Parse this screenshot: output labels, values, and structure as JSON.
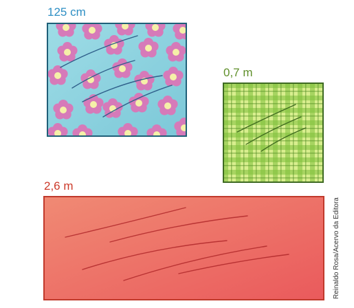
{
  "fabrics": [
    {
      "name": "floral",
      "measurement": "125 cm",
      "label_color": "#2e8fc4",
      "fill": "#8fd3e0",
      "pattern": "pink-flowers"
    },
    {
      "name": "plaid",
      "measurement": "0,7 m",
      "label_color": "#5f8f2a",
      "fill": "#d5ec8a",
      "pattern": "green-check"
    },
    {
      "name": "red",
      "measurement": "2,6 m",
      "label_color": "#cc3a2a",
      "fill": "#ef6a5e",
      "pattern": "plain-gradient"
    }
  ],
  "credit": "Reinaldo Rosa/Acervo da Editora"
}
